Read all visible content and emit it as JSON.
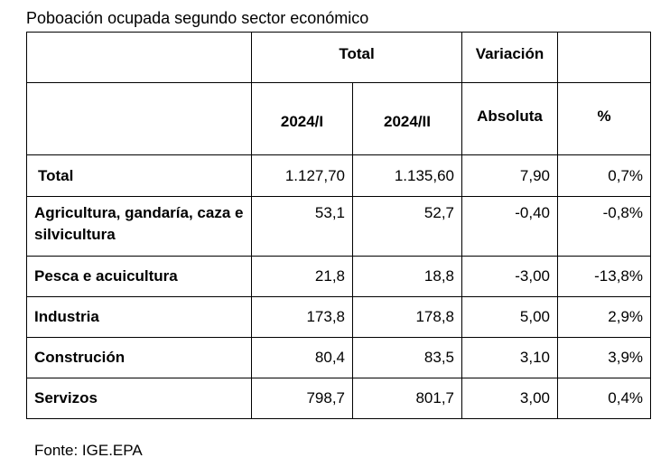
{
  "caption": "Poboación ocupada segundo sector económico",
  "table": {
    "group_headers": {
      "total": "Total",
      "variation": "Variación"
    },
    "sub_headers": {
      "p1": "2024/I",
      "p2": "2024/II",
      "absolute": "Absoluta",
      "percent": "%"
    },
    "rows": [
      {
        "label": "Total",
        "v1": "1.127,70",
        "v2": "1.135,60",
        "abs": "7,90",
        "pct": "0,7%"
      },
      {
        "label": "Agricultura, gandaría, caza e silvicultura",
        "v1": "53,1",
        "v2": "52,7",
        "abs": "-0,40",
        "pct": "-0,8%"
      },
      {
        "label": "Pesca e acuicultura",
        "v1": "21,8",
        "v2": "18,8",
        "abs": "-3,00",
        "pct": "-13,8%"
      },
      {
        "label": "Industria",
        "v1": "173,8",
        "v2": "178,8",
        "abs": "5,00",
        "pct": "2,9%"
      },
      {
        "label": "Construción",
        "v1": "80,4",
        "v2": "83,5",
        "abs": "3,10",
        "pct": "3,9%"
      },
      {
        "label": "Servizos",
        "v1": "798,7",
        "v2": "801,7",
        "abs": "3,00",
        "pct": "0,4%"
      }
    ]
  },
  "source": "Fonte: IGE.EPA"
}
